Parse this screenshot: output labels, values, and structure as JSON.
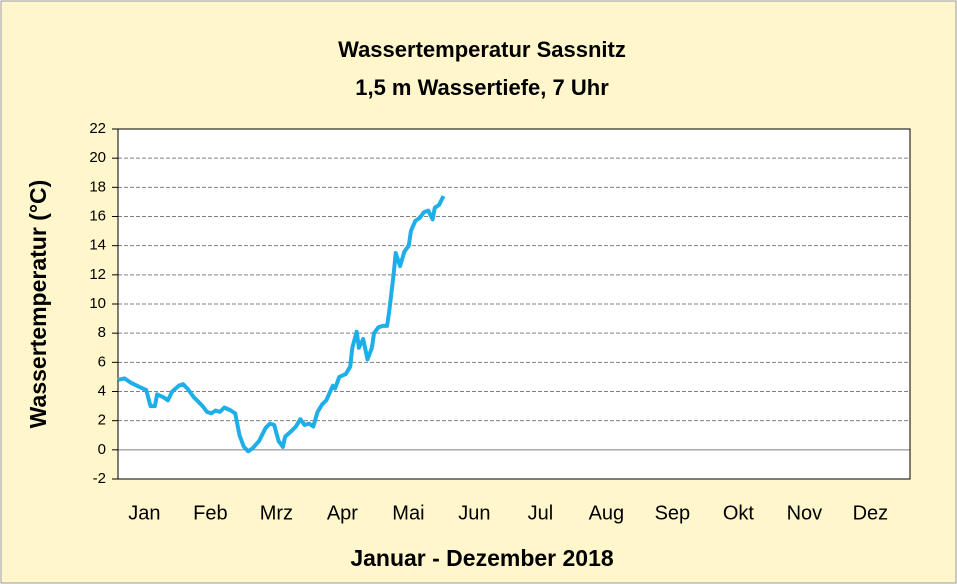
{
  "chart_data": {
    "type": "line",
    "title": "Wassertemperatur Sassnitz",
    "subtitle": "1,5 m Wassertiefe, 7 Uhr",
    "x_label": "Januar - Dezember 2018",
    "y_label": "Wassertemperatur (°C)",
    "categories": [
      "Jan",
      "Feb",
      "Mrz",
      "Apr",
      "Mai",
      "Jun",
      "Jul",
      "Aug",
      "Sep",
      "Okt",
      "Nov",
      "Dez"
    ],
    "xlim": [
      1,
      366
    ],
    "ylim": [
      -2,
      22
    ],
    "yticks": [
      -2,
      0,
      2,
      4,
      6,
      8,
      10,
      12,
      14,
      16,
      18,
      20,
      22
    ],
    "grid": true,
    "series": [
      {
        "name": "Wassertemperatur",
        "color": "#1eaee8",
        "x": [
          1,
          4,
          7,
          11,
          14,
          16,
          18,
          19,
          22,
          24,
          26,
          29,
          31,
          33,
          36,
          38,
          40,
          42,
          44,
          46,
          48,
          50,
          53,
          55,
          57,
          59,
          61,
          63,
          66,
          67,
          69,
          71,
          73,
          75,
          77,
          78,
          81,
          83,
          85,
          87,
          89,
          91,
          93,
          95,
          97,
          100,
          101,
          103,
          106,
          108,
          109,
          111,
          112,
          114,
          116,
          118,
          119,
          121,
          123,
          125,
          126,
          128,
          129,
          131,
          133,
          135,
          136,
          138,
          140,
          142,
          144,
          146,
          147,
          149,
          151
        ],
        "values": [
          4.8,
          4.9,
          4.6,
          4.3,
          4.1,
          3.0,
          3.0,
          3.8,
          3.6,
          3.4,
          4.0,
          4.4,
          4.5,
          4.2,
          3.6,
          3.3,
          3.0,
          2.6,
          2.5,
          2.7,
          2.6,
          2.9,
          2.7,
          2.5,
          1.0,
          0.2,
          -0.1,
          0.1,
          0.6,
          0.9,
          1.5,
          1.8,
          1.7,
          0.6,
          0.2,
          0.9,
          1.3,
          1.6,
          2.1,
          1.7,
          1.8,
          1.6,
          2.6,
          3.1,
          3.4,
          4.4,
          4.2,
          5.0,
          5.2,
          5.7,
          7.0,
          8.1,
          7.0,
          7.6,
          6.2,
          7.0,
          8.0,
          8.4,
          8.5,
          8.5,
          9.5,
          12.0,
          13.5,
          12.6,
          13.6,
          14.0,
          15.0,
          15.7,
          15.9,
          16.3,
          16.4,
          15.8,
          16.6,
          16.8,
          17.4
        ]
      }
    ]
  }
}
